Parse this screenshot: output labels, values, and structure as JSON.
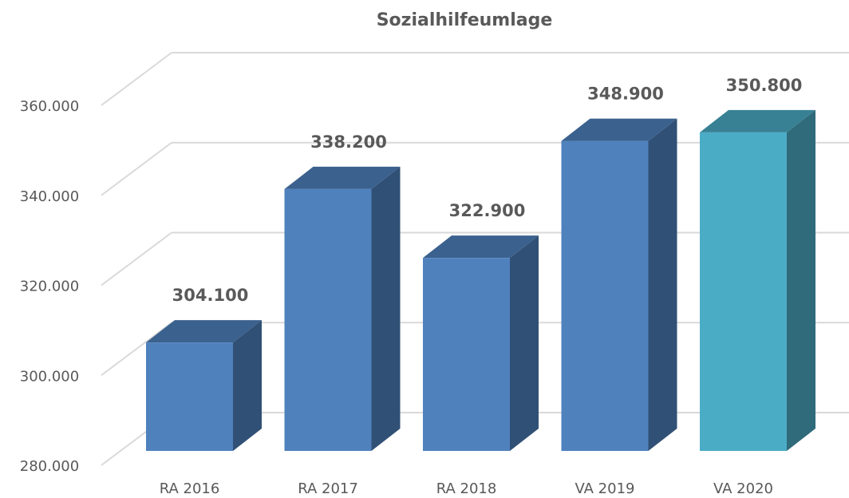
{
  "chart_data": {
    "type": "bar3d",
    "title": "Sozialhilfeumlage",
    "categories": [
      "RA 2016",
      "RA 2017",
      "RA 2018",
      "VA 2019",
      "VA 2020"
    ],
    "values": [
      304100,
      338200,
      322900,
      348900,
      350800
    ],
    "value_labels": [
      "304.100",
      "338.200",
      "322.900",
      "348.900",
      "350.800"
    ],
    "colors": [
      "#4f81bd",
      "#4f81bd",
      "#4f81bd",
      "#4f81bd",
      "#4bacc6"
    ],
    "ylim": [
      280000,
      360000
    ],
    "yticks": [
      {
        "value": 280000,
        "label": "280.000"
      },
      {
        "value": 300000,
        "label": "300.000"
      },
      {
        "value": 320000,
        "label": "320.000"
      },
      {
        "value": 340000,
        "label": "340.000"
      },
      {
        "value": 360000,
        "label": "360.000"
      }
    ],
    "grid": true
  }
}
